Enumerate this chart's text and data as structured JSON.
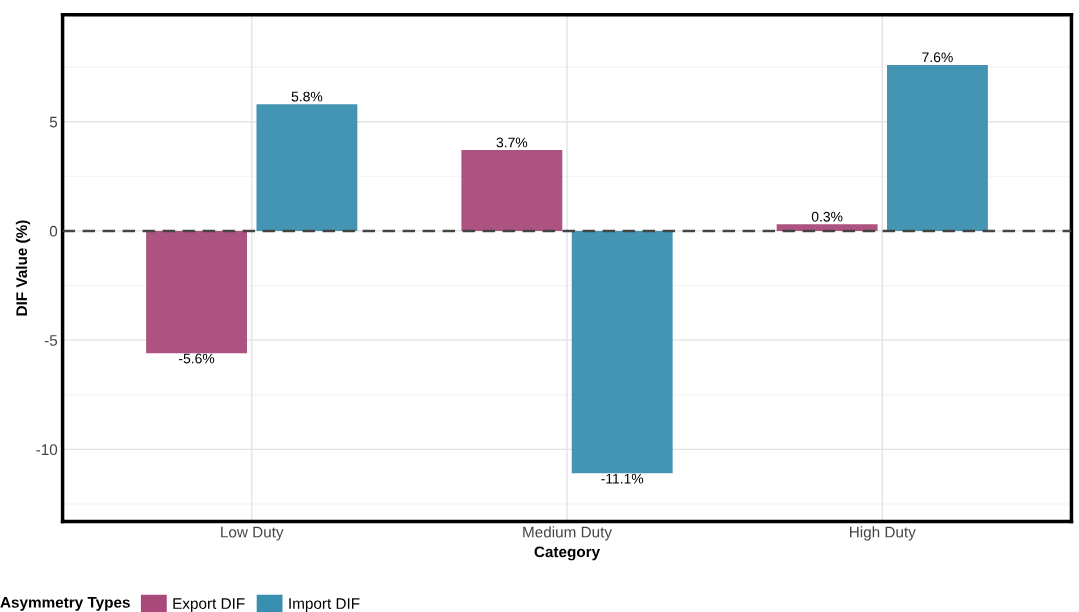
{
  "chart_data": {
    "type": "bar",
    "xlabel": "Category",
    "ylabel": "DIF Value (%)",
    "legend_title": "Asymmetry Types",
    "categories": [
      "Low Duty",
      "Medium Duty",
      "High Duty"
    ],
    "series": [
      {
        "name": "Export DIF",
        "color": "#a84a7a",
        "values": [
          -5.6,
          3.7,
          0.3
        ],
        "value_labels": [
          "-5.6%",
          "3.7%",
          "0.3%"
        ]
      },
      {
        "name": "Import DIF",
        "color": "#3a8fb0",
        "values": [
          5.8,
          -11.1,
          7.6
        ],
        "value_labels": [
          "5.8%",
          "-11.1%",
          "7.6%"
        ]
      }
    ],
    "ylim": [
      -13.3,
      9.9
    ],
    "yticks": [
      -10,
      -5,
      0,
      5
    ],
    "ref_lines": [
      {
        "axis": "y",
        "value": 0,
        "color": "#444444",
        "line_style": "dashed"
      }
    ],
    "grid": true,
    "legend": "bottom"
  }
}
